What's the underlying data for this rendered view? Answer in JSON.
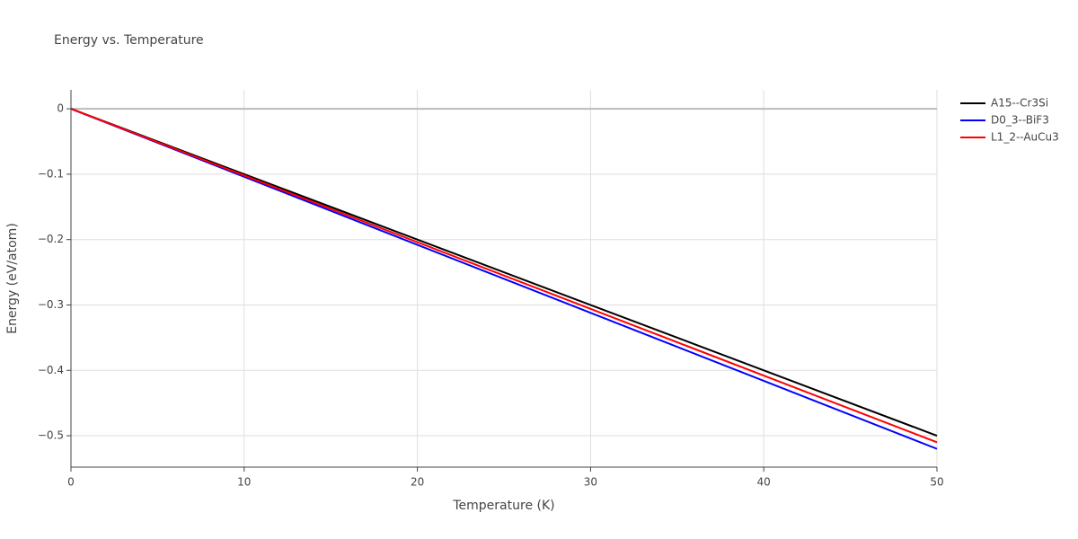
{
  "chart_data": {
    "type": "line",
    "title": "Energy vs. Temperature",
    "x_label": "Temperature (K)",
    "y_label": "Energy (eV/atom)",
    "x": [
      0,
      50
    ],
    "series": [
      {
        "name": "A15--Cr3Si",
        "color": "#000000",
        "values": [
          0,
          -0.5
        ]
      },
      {
        "name": "D0_3--BiF3",
        "color": "#0000ff",
        "values": [
          0,
          -0.52
        ]
      },
      {
        "name": "L1_2--AuCu3",
        "color": "#ff0000",
        "values": [
          0,
          -0.51
        ]
      }
    ],
    "xlim": [
      0,
      50
    ],
    "xticks": [
      0,
      10,
      20,
      30,
      40,
      50
    ],
    "ylim": [
      -0.548,
      0.029
    ],
    "yticks": [
      {
        "value": -0.5,
        "label": "−0.5"
      },
      {
        "value": -0.4,
        "label": "−0.4"
      },
      {
        "value": -0.3,
        "label": "−0.3"
      },
      {
        "value": -0.2,
        "label": "−0.2"
      },
      {
        "value": -0.1,
        "label": "−0.1"
      },
      0
    ],
    "grid": true,
    "legend": "outside-top-right"
  }
}
